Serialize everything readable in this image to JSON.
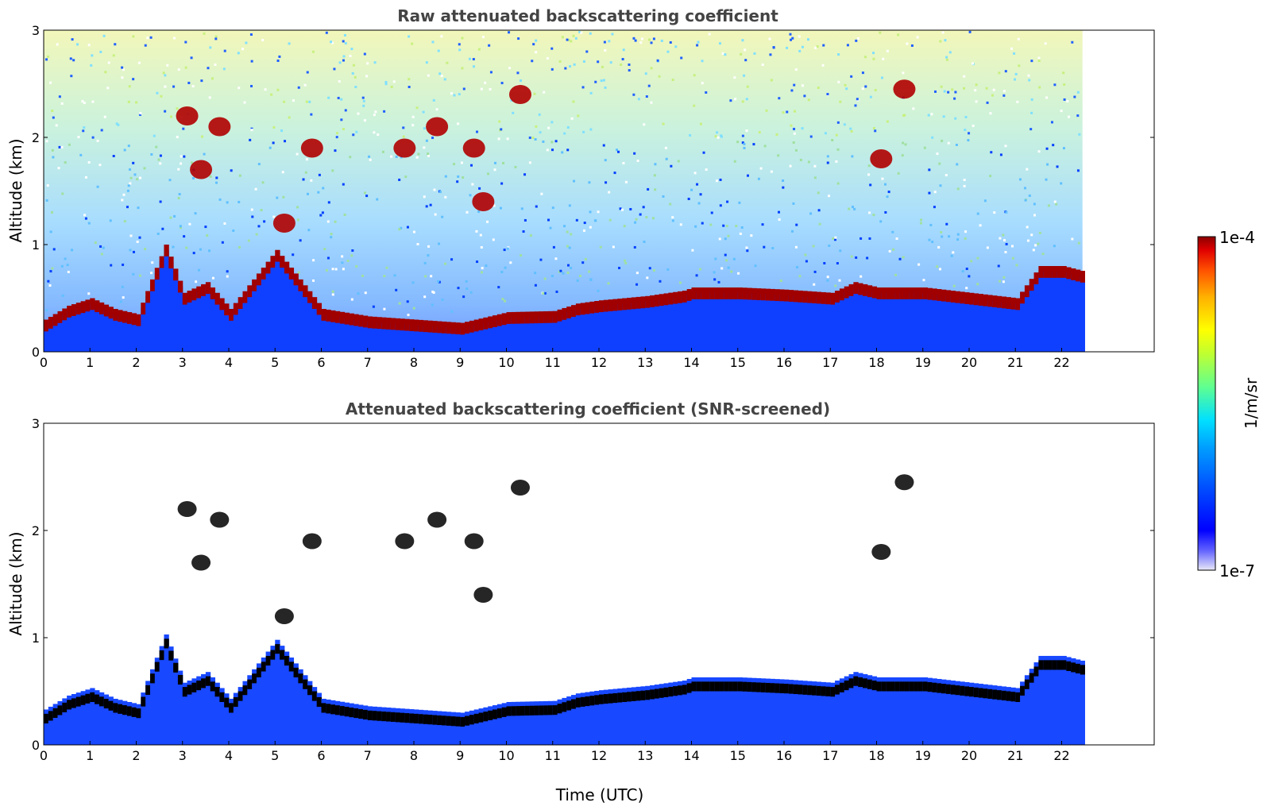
{
  "chart_data": [
    {
      "type": "heatmap",
      "title": "Raw attenuated backscattering coefficient",
      "xlabel": "",
      "ylabel": "Altitude (km)",
      "xlim": [
        0,
        24
      ],
      "ylim": [
        0,
        3
      ],
      "x_ticks": [
        "0",
        "1",
        "2",
        "3",
        "4",
        "5",
        "6",
        "7",
        "8",
        "9",
        "10",
        "11",
        "12",
        "13",
        "14",
        "15",
        "16",
        "17",
        "18",
        "19",
        "20",
        "21",
        "22"
      ],
      "y_ticks": [
        "0",
        "1",
        "2",
        "3"
      ],
      "data_extent_hours": [
        0,
        22.45
      ],
      "variant": "raw",
      "boundary_layer_top_km": [
        {
          "x": 0.0,
          "y": 0.25
        },
        {
          "x": 0.5,
          "y": 0.38
        },
        {
          "x": 1.0,
          "y": 0.45
        },
        {
          "x": 1.5,
          "y": 0.35
        },
        {
          "x": 2.0,
          "y": 0.3
        },
        {
          "x": 2.6,
          "y": 0.95
        },
        {
          "x": 3.0,
          "y": 0.5
        },
        {
          "x": 3.5,
          "y": 0.6
        },
        {
          "x": 4.0,
          "y": 0.35
        },
        {
          "x": 5.0,
          "y": 0.9
        },
        {
          "x": 6.0,
          "y": 0.35
        },
        {
          "x": 7.0,
          "y": 0.28
        },
        {
          "x": 8.0,
          "y": 0.25
        },
        {
          "x": 9.0,
          "y": 0.22
        },
        {
          "x": 10.0,
          "y": 0.32
        },
        {
          "x": 11.0,
          "y": 0.33
        },
        {
          "x": 11.5,
          "y": 0.4
        },
        {
          "x": 12.0,
          "y": 0.43
        },
        {
          "x": 13.0,
          "y": 0.47
        },
        {
          "x": 13.8,
          "y": 0.52
        },
        {
          "x": 14.0,
          "y": 0.55
        },
        {
          "x": 15.0,
          "y": 0.55
        },
        {
          "x": 16.0,
          "y": 0.53
        },
        {
          "x": 17.0,
          "y": 0.5
        },
        {
          "x": 17.5,
          "y": 0.6
        },
        {
          "x": 18.0,
          "y": 0.55
        },
        {
          "x": 19.0,
          "y": 0.55
        },
        {
          "x": 20.0,
          "y": 0.5
        },
        {
          "x": 21.0,
          "y": 0.45
        },
        {
          "x": 21.5,
          "y": 0.75
        },
        {
          "x": 22.0,
          "y": 0.75
        },
        {
          "x": 22.45,
          "y": 0.7
        }
      ],
      "cloud_features_km": [
        {
          "x": 3.1,
          "y": 2.2
        },
        {
          "x": 3.8,
          "y": 2.1
        },
        {
          "x": 3.4,
          "y": 1.7
        },
        {
          "x": 5.8,
          "y": 1.9
        },
        {
          "x": 5.2,
          "y": 1.2
        },
        {
          "x": 7.8,
          "y": 1.9
        },
        {
          "x": 8.5,
          "y": 2.1
        },
        {
          "x": 9.3,
          "y": 1.9
        },
        {
          "x": 9.5,
          "y": 1.4
        },
        {
          "x": 10.3,
          "y": 2.4
        },
        {
          "x": 18.6,
          "y": 2.45
        },
        {
          "x": 18.1,
          "y": 1.8
        }
      ]
    },
    {
      "type": "heatmap",
      "title": "Attenuated backscattering coefficient (SNR-screened)",
      "xlabel": "Time (UTC)",
      "ylabel": "Altitude (km)",
      "xlim": [
        0,
        24
      ],
      "ylim": [
        0,
        3
      ],
      "x_ticks": [
        "0",
        "1",
        "2",
        "3",
        "4",
        "5",
        "6",
        "7",
        "8",
        "9",
        "10",
        "11",
        "12",
        "13",
        "14",
        "15",
        "16",
        "17",
        "18",
        "19",
        "20",
        "21",
        "22"
      ],
      "y_ticks": [
        "0",
        "1",
        "2",
        "3"
      ],
      "data_extent_hours": [
        0,
        22.45
      ],
      "variant": "screened"
    }
  ],
  "colorbar": {
    "min_label": "1e-7",
    "max_label": "1e-4",
    "unit_label": "1/m/sr",
    "colormap": [
      "#e8e8f8",
      "#0000ff",
      "#0050ff",
      "#00a0ff",
      "#00e0ff",
      "#60ff90",
      "#c0ff30",
      "#ffff00",
      "#ffb000",
      "#ff5000",
      "#e00000",
      "#8b0000"
    ]
  }
}
